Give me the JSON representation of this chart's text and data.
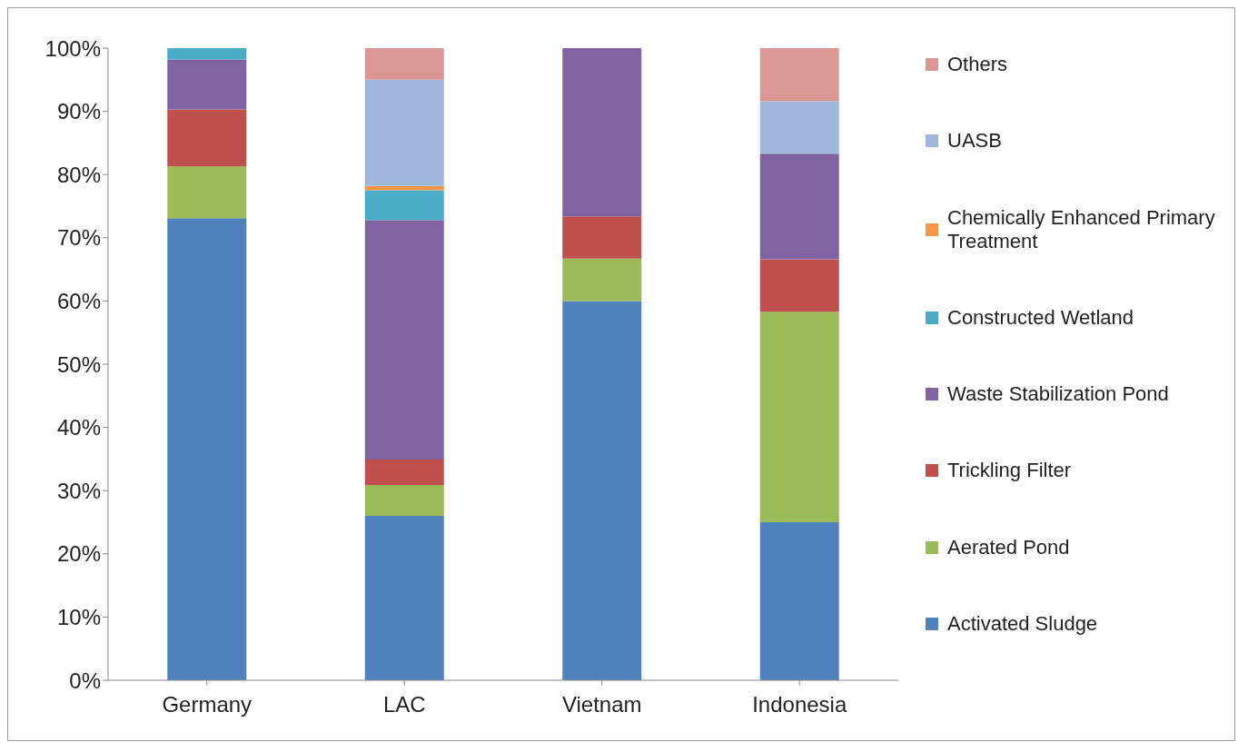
{
  "chart_data": {
    "type": "bar",
    "stacked": true,
    "categories": [
      "Germany",
      "LAC",
      "Vietnam",
      "Indonesia"
    ],
    "series": [
      {
        "name": "Activated Sludge",
        "color": "#4f81bd",
        "values": [
          73.1,
          26,
          60,
          25
        ]
      },
      {
        "name": "Aerated Pond",
        "color": "#9bbb59",
        "values": [
          8.2,
          4.9,
          6.7,
          33.3
        ]
      },
      {
        "name": "Trickling Filter",
        "color": "#c0504d",
        "values": [
          9,
          4,
          6.7,
          8.3
        ]
      },
      {
        "name": "Waste Stabilization Pond",
        "color": "#8064a2",
        "values": [
          7.9,
          37.9,
          26.6,
          16.7
        ]
      },
      {
        "name": "Constructed Wetland",
        "color": "#4bacc6",
        "values": [
          1.8,
          4.7,
          0,
          0
        ]
      },
      {
        "name": "Chemically Enhanced Primary Treatment",
        "color": "#f79646",
        "values": [
          0,
          0.7,
          0,
          0
        ]
      },
      {
        "name": "UASB",
        "color": "#9eb6d9",
        "values": [
          0,
          16.8,
          0,
          8.3
        ]
      },
      {
        "name": "Others",
        "color": "#d99795",
        "values": [
          0,
          5,
          0,
          8.4
        ]
      }
    ],
    "ylim": [
      0,
      100
    ],
    "yticks": [
      {
        "value": 0,
        "label": "0%"
      },
      {
        "value": 10,
        "label": "10%"
      },
      {
        "value": 20,
        "label": "20%"
      },
      {
        "value": 30,
        "label": "30%"
      },
      {
        "value": 40,
        "label": "40%"
      },
      {
        "value": 50,
        "label": "50%"
      },
      {
        "value": 60,
        "label": "60%"
      },
      {
        "value": 70,
        "label": "70%"
      },
      {
        "value": 80,
        "label": "80%"
      },
      {
        "value": 90,
        "label": "90%"
      },
      {
        "value": 100,
        "label": "100%"
      }
    ],
    "grid": false,
    "legend": "right"
  }
}
